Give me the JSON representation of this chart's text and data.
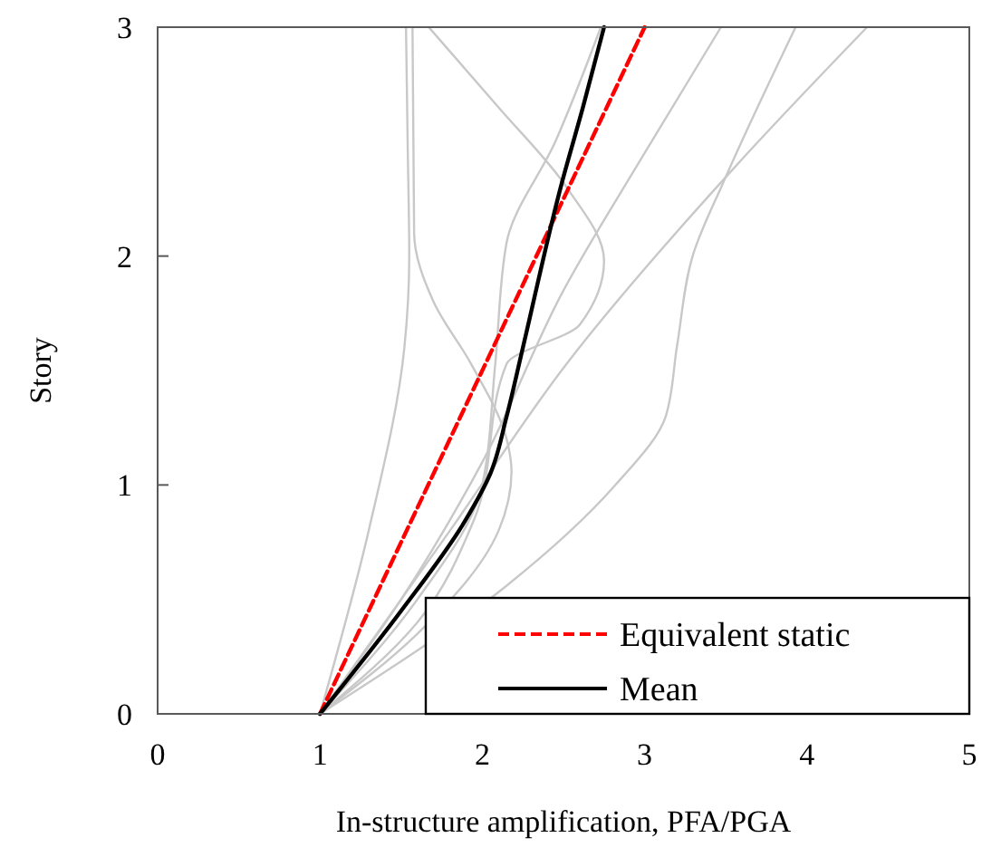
{
  "chart_data": {
    "type": "line",
    "xlabel": "In-structure amplification, PFA/PGA",
    "ylabel": "Story",
    "xlim": [
      0,
      5
    ],
    "xticks": [
      0,
      1,
      2,
      3,
      4,
      5
    ],
    "ylim": [
      0,
      3
    ],
    "yticks": [
      0,
      1,
      2,
      3
    ],
    "grid": false,
    "legend": "bottom right",
    "marker": "none",
    "series": [
      {
        "color": "#c8c8c8",
        "x": [
          1,
          1.3,
          1.52,
          1.55,
          1.54,
          1.53
        ],
        "values": [
          0,
          0.8,
          1.6,
          2,
          2.5,
          3
        ]
      },
      {
        "color": "#c8c8c8",
        "x": [
          1,
          1.6,
          2.1,
          2.18,
          2.15,
          1.93,
          1.7,
          1.58,
          1.57
        ],
        "values": [
          0,
          0.35,
          0.8,
          1.06,
          1.2,
          1.53,
          1.8,
          2.1,
          3
        ]
      },
      {
        "color": "#c8c8c8",
        "x": [
          1,
          1.6,
          1.95,
          2.15,
          2.6,
          2.75,
          2.52,
          2.1,
          1.67
        ],
        "values": [
          0,
          0.4,
          0.85,
          1.53,
          1.7,
          1.98,
          2.3,
          2.65,
          3
        ]
      },
      {
        "color": "#c8c8c8",
        "x": [
          1,
          1.6,
          2.0,
          2.08,
          2.15,
          2.45,
          2.73
        ],
        "values": [
          0,
          0.5,
          1.0,
          1.53,
          2.06,
          2.5,
          3
        ]
      },
      {
        "color": "#c8c8c8",
        "x": [
          1,
          1.5,
          2.0,
          2.5,
          3.0,
          3.47
        ],
        "values": [
          0,
          0.5,
          1.1,
          1.85,
          2.45,
          3
        ]
      },
      {
        "color": "#c8c8c8",
        "x": [
          1,
          2.15,
          2.82,
          3.13,
          3.2,
          3.3,
          3.49,
          3.93
        ],
        "values": [
          0,
          0.56,
          1.0,
          1.3,
          1.61,
          2.01,
          2.33,
          3
        ]
      },
      {
        "color": "#c8c8c8",
        "x": [
          1,
          1.8,
          2.52,
          3.57,
          4.37
        ],
        "values": [
          0,
          0.8,
          1.53,
          2.4,
          3
        ]
      },
      {
        "name": "Equivalent static",
        "color": "#ff0000",
        "line_style": "dashed",
        "x": [
          1,
          3
        ],
        "values": [
          0,
          3
        ]
      },
      {
        "name": "Mean",
        "color": "#000000",
        "line_style": "solid",
        "x": [
          1,
          1.5,
          1.9,
          2.05,
          2.15,
          2.25,
          2.49,
          2.62,
          2.75
        ],
        "values": [
          0,
          0.45,
          0.85,
          1.05,
          1.3,
          1.6,
          2.32,
          2.65,
          3
        ]
      }
    ]
  }
}
